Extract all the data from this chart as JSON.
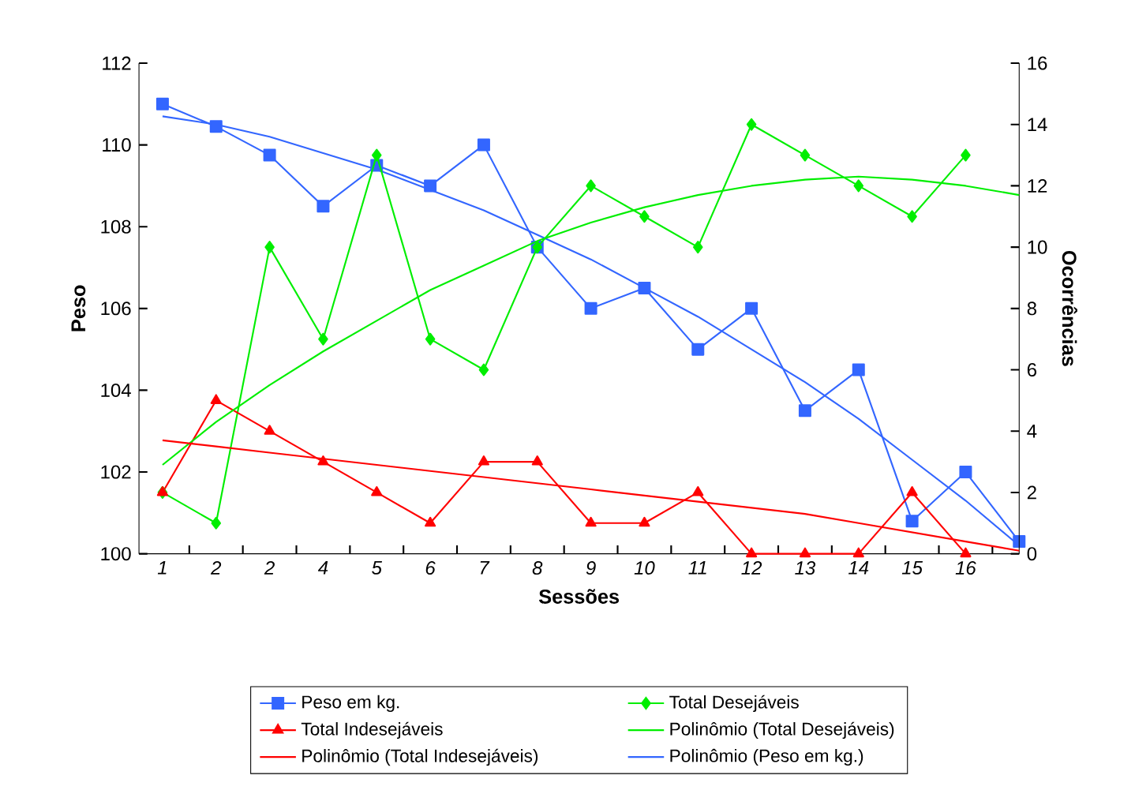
{
  "chart_data": {
    "type": "line",
    "xlabel": "Sessões",
    "ylabel": "Peso",
    "y2label": "Ocorrências",
    "categories": [
      "1",
      "2",
      "2",
      "4",
      "5",
      "6",
      "7",
      "8",
      "9",
      "10",
      "11",
      "12",
      "13",
      "14",
      "15",
      "16",
      null
    ],
    "ylim": [
      100,
      112
    ],
    "yticks": [
      100,
      102,
      104,
      106,
      108,
      110,
      112
    ],
    "y2lim": [
      0,
      16
    ],
    "y2ticks": [
      0,
      2,
      4,
      6,
      8,
      10,
      12,
      14,
      16
    ],
    "legend": "bottom",
    "grid": false,
    "line_style": "solid",
    "series": [
      {
        "name": "Peso em kg.",
        "color": "#3366ff",
        "marker": "square",
        "values": [
          111,
          110.45,
          109.75,
          108.5,
          109.5,
          109,
          110,
          107.5,
          106,
          106.5,
          105,
          106,
          103.5,
          104.5,
          100.8,
          102,
          100.3
        ]
      },
      {
        "name": "Total Desejáveis",
        "color": "#00ee00",
        "marker": "diamond",
        "axis": "y2",
        "values": [
          2,
          1,
          10,
          7,
          13,
          7,
          6,
          10,
          12,
          11,
          10,
          14,
          13,
          12,
          11,
          13,
          null
        ]
      },
      {
        "name": "Total Indesejáveis",
        "color": "#ff0000",
        "marker": "triangle",
        "axis": "y2",
        "values": [
          2,
          5,
          4,
          3,
          2,
          1,
          3,
          3,
          1,
          1,
          2,
          0,
          0,
          0,
          2,
          0,
          null
        ]
      },
      {
        "name": "Polinômio (Total Desejáveis)",
        "color": "#00ee00",
        "marker": "none",
        "axis": "y2",
        "values": [
          2.9,
          4.3,
          5.5,
          6.6,
          7.6,
          8.6,
          9.4,
          10.2,
          10.8,
          11.3,
          11.7,
          12.0,
          12.2,
          12.3,
          12.2,
          12.0,
          11.7
        ]
      },
      {
        "name": "Polinômio (Total Indesejáveis)",
        "color": "#ff0000",
        "marker": "none",
        "axis": "y2",
        "values": [
          3.7,
          3.5,
          3.3,
          3.1,
          2.9,
          2.7,
          2.5,
          2.3,
          2.1,
          1.9,
          1.7,
          1.5,
          1.3,
          1.0,
          0.7,
          0.4,
          0.1
        ]
      },
      {
        "name": "Polinômio (Peso em kg.)",
        "color": "#3366ff",
        "marker": "none",
        "values": [
          110.7,
          110.5,
          110.2,
          109.8,
          109.4,
          108.9,
          108.4,
          107.8,
          107.2,
          106.5,
          105.8,
          105.0,
          104.2,
          103.3,
          102.3,
          101.3,
          100.2
        ]
      }
    ]
  }
}
